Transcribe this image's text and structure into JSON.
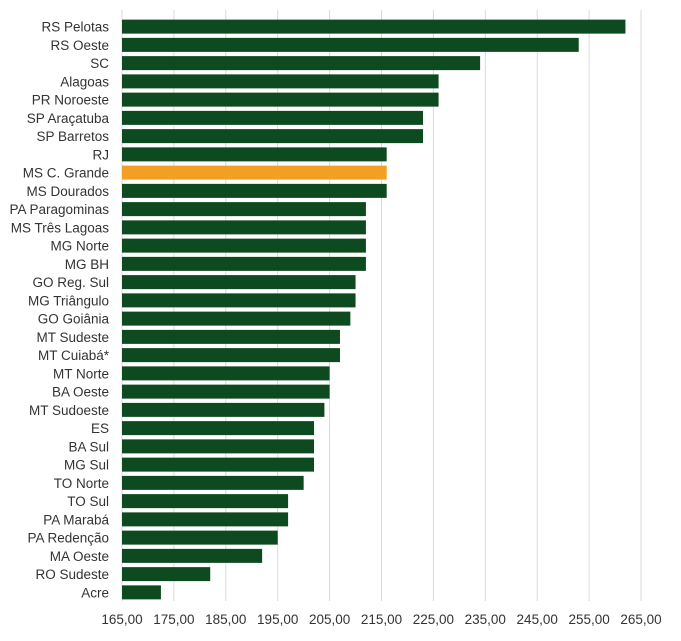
{
  "chart_data": {
    "type": "bar",
    "orientation": "horizontal",
    "title": "",
    "xlabel": "",
    "ylabel": "",
    "xlim": [
      165,
      265
    ],
    "x_ticks": [
      "165,00",
      "175,00",
      "185,00",
      "195,00",
      "205,00",
      "215,00",
      "225,00",
      "235,00",
      "245,00",
      "255,00",
      "265,00"
    ],
    "grid": true,
    "legend": "none",
    "colors": {
      "default": "#0d4a1f",
      "highlight": "#f2a024"
    },
    "highlight_category": "MS C. Grande",
    "categories": [
      "RS Pelotas",
      "RS Oeste",
      "SC",
      "Alagoas",
      "PR Noroeste",
      "SP Araçatuba",
      "SP Barretos",
      "RJ",
      "MS C. Grande",
      "MS Dourados",
      "PA Paragominas",
      "MS Três Lagoas",
      "MG Norte",
      "MG BH",
      "GO Reg. Sul",
      "MG Triângulo",
      "GO Goiânia",
      "MT Sudeste",
      "MT Cuiabá*",
      "MT Norte",
      "BA Oeste",
      "MT Sudoeste",
      "ES",
      "BA Sul",
      "MG Sul",
      "TO Norte",
      "TO Sul",
      "PA Marabá",
      "PA Redenção",
      "MA Oeste",
      "RO Sudeste",
      "Acre"
    ],
    "values": [
      262,
      253,
      234,
      226,
      226,
      223,
      223,
      216,
      216,
      216,
      212,
      212,
      212,
      212,
      210,
      210,
      209,
      207,
      207,
      205,
      205,
      204,
      202,
      202,
      202,
      200,
      197,
      197,
      195,
      192,
      182,
      172.5
    ]
  }
}
